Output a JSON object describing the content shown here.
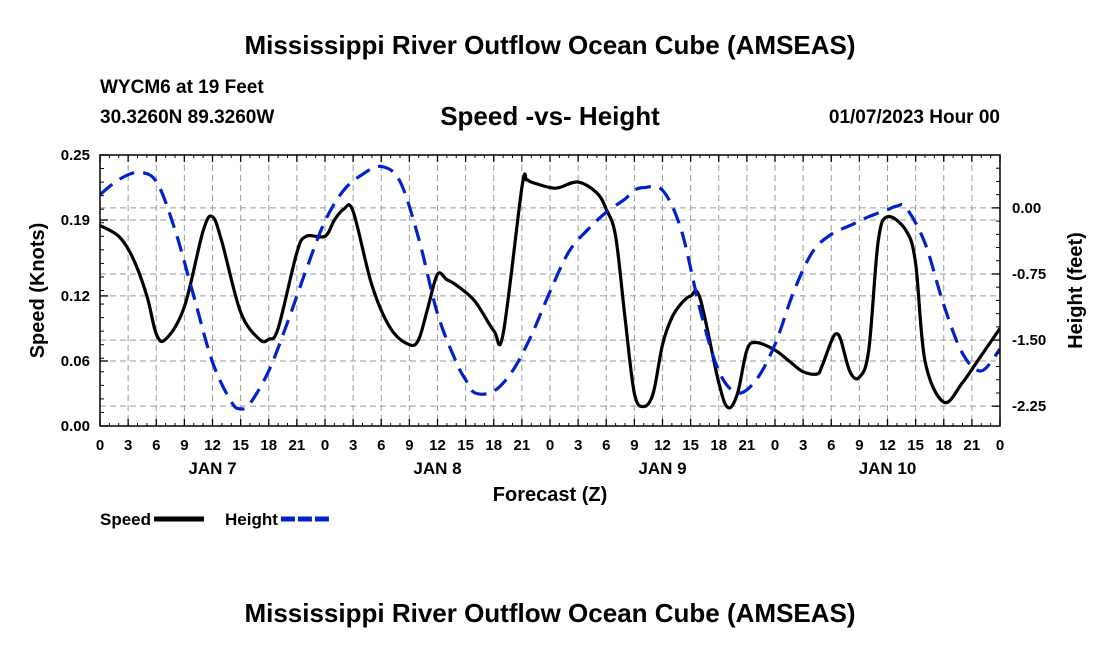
{
  "header": {
    "title": "Mississippi River Outflow Ocean Cube (AMSEAS)",
    "station": "WYCM6 at 19 Feet",
    "coordinates": "30.3260N  89.3260W",
    "subtitle": "Speed -vs- Height",
    "datetime": "01/07/2023 Hour 00"
  },
  "footer": {
    "title": "Mississippi River Outflow Ocean Cube (AMSEAS)"
  },
  "chart_data": {
    "type": "line",
    "title": "Speed -vs- Height",
    "xlabel": "Forecast (Z)",
    "ylabel": "Speed (Knots)",
    "y2label": "Height (feet)",
    "x_unit": "forecast hours from 01/07/2023 00Z",
    "xlim": [
      0,
      96
    ],
    "ylim": [
      0,
      0.25
    ],
    "y2lim": [
      -2.475,
      0.6
    ],
    "x_tick_step": 3,
    "x_tick_labels": [
      "0",
      "3",
      "6",
      "9",
      "12",
      "15",
      "18",
      "21",
      "0",
      "3",
      "6",
      "9",
      "12",
      "15",
      "18",
      "21",
      "0",
      "3",
      "6",
      "9",
      "12",
      "15",
      "18",
      "21",
      "0",
      "3",
      "6",
      "9",
      "12",
      "15",
      "18",
      "21",
      "0"
    ],
    "day_labels": [
      {
        "hour": 12,
        "label": "JAN 7"
      },
      {
        "hour": 36,
        "label": "JAN 8"
      },
      {
        "hour": 60,
        "label": "JAN 9"
      },
      {
        "hour": 84,
        "label": "JAN 10"
      }
    ],
    "y_ticks": [
      0.0,
      0.06,
      0.12,
      0.19,
      0.25
    ],
    "y_tick_labels": [
      "0.00",
      "0.06",
      "0.12",
      "0.19",
      "0.25"
    ],
    "y2_ticks": [
      0.0,
      -0.75,
      -1.5,
      -2.25
    ],
    "y2_tick_labels": [
      "0.00",
      "-0.75",
      "-1.50",
      "-2.25"
    ],
    "grid": true,
    "legend_position": "bottom-left",
    "series": [
      {
        "name": "Speed",
        "axis": "left",
        "color": "#000000",
        "style": "solid",
        "x": [
          0,
          2,
          3.5,
          5,
          6,
          7,
          9,
          11,
          12,
          13,
          15,
          17,
          18,
          19,
          21,
          22,
          24,
          25,
          26,
          27,
          29,
          31,
          33,
          34,
          35,
          36,
          37,
          38,
          40,
          42,
          43,
          45,
          45.5,
          46,
          48,
          49,
          51,
          53,
          54,
          55,
          56,
          57,
          58,
          59,
          60,
          61,
          62,
          63,
          64,
          66,
          67,
          68,
          69,
          70,
          72,
          73.5,
          75,
          76.5,
          77,
          78,
          78.5,
          79,
          80,
          81,
          82,
          83,
          84,
          86,
          87,
          88,
          90,
          92,
          94,
          96
        ],
        "values": [
          0.185,
          0.175,
          0.155,
          0.12,
          0.085,
          0.08,
          0.11,
          0.18,
          0.193,
          0.17,
          0.105,
          0.08,
          0.08,
          0.09,
          0.16,
          0.175,
          0.175,
          0.19,
          0.2,
          0.198,
          0.13,
          0.09,
          0.075,
          0.08,
          0.11,
          0.14,
          0.135,
          0.13,
          0.115,
          0.088,
          0.085,
          0.22,
          0.227,
          0.225,
          0.22,
          0.22,
          0.225,
          0.215,
          0.2,
          0.175,
          0.1,
          0.03,
          0.018,
          0.03,
          0.075,
          0.1,
          0.113,
          0.12,
          0.118,
          0.04,
          0.017,
          0.03,
          0.07,
          0.077,
          0.07,
          0.06,
          0.05,
          0.048,
          0.055,
          0.078,
          0.085,
          0.08,
          0.05,
          0.045,
          0.07,
          0.17,
          0.193,
          0.18,
          0.15,
          0.06,
          0.022,
          0.04,
          0.065,
          0.09
        ]
      },
      {
        "name": "Height",
        "axis": "right",
        "color": "#0022cc",
        "style": "dashed",
        "x": [
          0,
          2,
          4,
          6,
          8,
          10,
          12,
          14,
          15,
          16,
          18,
          20,
          22,
          24,
          26,
          28,
          30,
          32,
          34,
          36,
          38,
          39,
          40,
          42,
          44,
          46,
          48,
          50,
          52,
          54,
          56,
          57,
          58,
          60,
          62,
          64,
          66,
          68,
          70,
          72,
          74,
          76,
          78,
          80,
          82,
          84,
          85,
          86,
          88,
          90,
          92,
          94,
          96
        ],
        "values": [
          0.15,
          0.32,
          0.4,
          0.3,
          -0.25,
          -1.0,
          -1.75,
          -2.2,
          -2.28,
          -2.22,
          -1.85,
          -1.3,
          -0.7,
          -0.15,
          0.2,
          0.38,
          0.47,
          0.3,
          -0.35,
          -1.2,
          -1.75,
          -1.95,
          -2.1,
          -2.08,
          -1.85,
          -1.45,
          -0.95,
          -0.5,
          -0.25,
          -0.05,
          0.1,
          0.2,
          0.23,
          0.2,
          -0.25,
          -1.15,
          -1.85,
          -2.1,
          -1.95,
          -1.55,
          -0.95,
          -0.5,
          -0.3,
          -0.2,
          -0.1,
          -0.02,
          0.02,
          0.0,
          -0.4,
          -1.1,
          -1.65,
          -1.85,
          -1.6
        ]
      }
    ]
  },
  "legend": [
    {
      "label": "Speed",
      "color": "#000000",
      "style": "solid"
    },
    {
      "label": "Height",
      "color": "#0022cc",
      "style": "dashed"
    }
  ]
}
